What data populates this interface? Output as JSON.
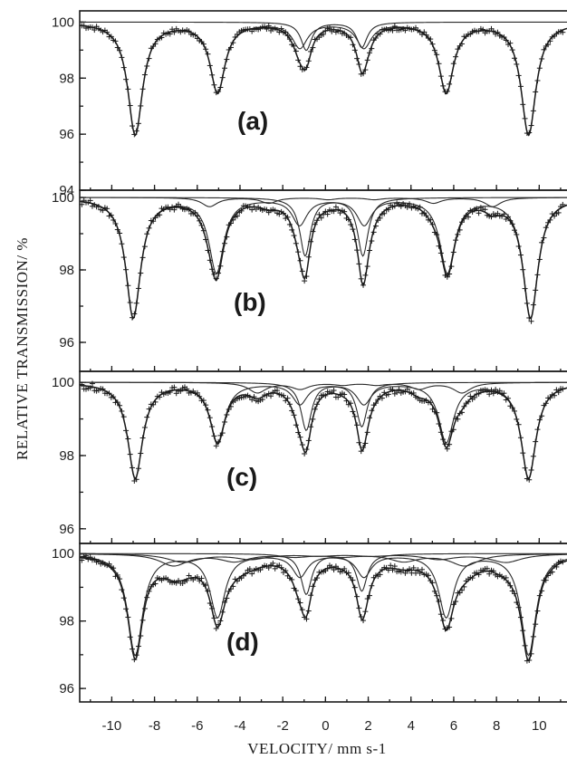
{
  "chart_data": {
    "type": "line",
    "xlabel": "VELOCITY/ mm s-1",
    "ylabel": "RELATIVE  TRANSMISSION/ %",
    "xlim": [
      -11.5,
      11.3
    ],
    "x_ticks": [
      -10,
      -8,
      -6,
      -4,
      -2,
      0,
      2,
      4,
      6,
      8,
      10
    ],
    "grid": false,
    "panels": [
      {
        "label": "(a)",
        "ylim": [
          94,
          100.4
        ],
        "y_ticks": [
          94,
          96,
          98,
          100
        ],
        "components": [
          {
            "position": 0.3,
            "B": 10.0,
            "depth1": 4.0,
            "width": 0.42
          },
          {
            "position": 0.4,
            "depth_left": 1.0,
            "depth_right": 0.9,
            "split": 2.6,
            "width": 0.3
          }
        ]
      },
      {
        "label": "(b)",
        "ylim": [
          95.2,
          100.2
        ],
        "y_ticks": [
          96,
          98,
          100
        ],
        "components": [
          {
            "position": 0.3,
            "B": 10.1,
            "depth1": 3.3,
            "width": 0.42
          },
          {
            "position": 0.4,
            "depth_left": 1.6,
            "depth_right": 1.6,
            "split": 2.7,
            "width": 0.3
          },
          {
            "position": 1.2,
            "B": 7.2,
            "depth1": 0.25,
            "width": 0.45
          }
        ]
      },
      {
        "label": "(c)",
        "ylim": [
          95.6,
          100.3
        ],
        "y_ticks": [
          96,
          98,
          100
        ],
        "components": [
          {
            "position": 0.3,
            "B": 10.0,
            "depth1": 2.6,
            "width": 0.42
          },
          {
            "position": 0.4,
            "depth_left": 1.3,
            "depth_right": 1.2,
            "split": 2.6,
            "width": 0.3
          },
          {
            "position": 1.6,
            "B": 5.2,
            "depth1": 0.28,
            "width": 0.5
          }
        ]
      },
      {
        "label": "(d)",
        "ylim": [
          95.6,
          100.3
        ],
        "y_ticks": [
          96,
          98,
          100
        ],
        "components": [
          {
            "position": 0.3,
            "B": 10.0,
            "depth1": 3.0,
            "width": 0.42
          },
          {
            "position": 0.4,
            "depth_left": 1.2,
            "depth_right": 1.1,
            "split": 2.6,
            "width": 0.3
          },
          {
            "position": -0.3,
            "B": 7.4,
            "depth1": 0.35,
            "width": 0.8
          },
          {
            "position": 0.9,
            "B": 8.2,
            "depth1": 0.25,
            "width": 0.9
          }
        ]
      }
    ]
  }
}
